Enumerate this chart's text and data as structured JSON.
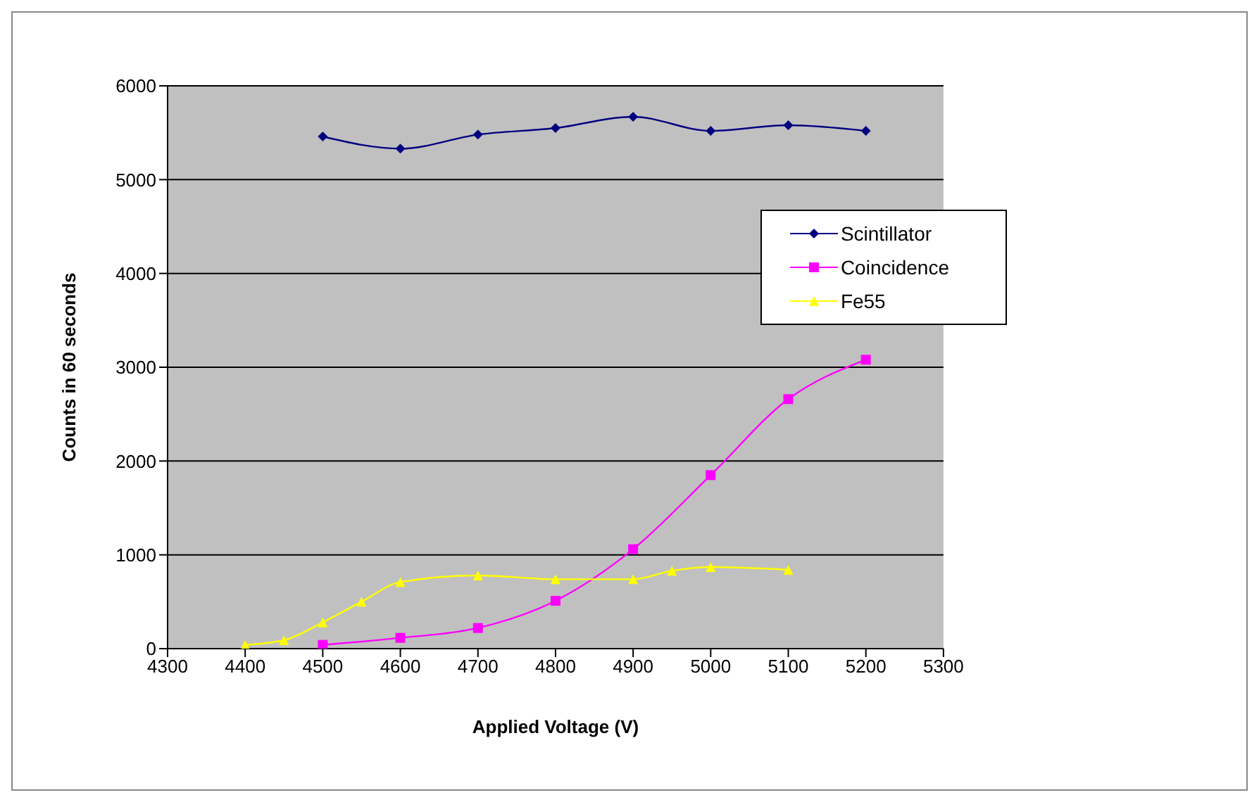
{
  "chart_data": {
    "type": "line",
    "xlabel": "Applied Voltage (V)",
    "ylabel": "Counts in 60 seconds",
    "xlim": [
      4300,
      5300
    ],
    "xticks": [
      4300,
      4400,
      4500,
      4600,
      4700,
      4800,
      4900,
      5000,
      5100,
      5200,
      5300
    ],
    "ylim": [
      0,
      6000
    ],
    "yticks": [
      0,
      1000,
      2000,
      3000,
      4000,
      5000,
      6000
    ],
    "grid": "y",
    "legend": "right",
    "series": [
      {
        "name": "Scintillator",
        "color": "#000080",
        "marker": "diamond",
        "x": [
          4500,
          4600,
          4700,
          4800,
          4900,
          5000,
          5100,
          5200
        ],
        "values": [
          5460,
          5330,
          5480,
          5550,
          5670,
          5520,
          5580,
          5520
        ]
      },
      {
        "name": "Coincidence",
        "color": "#ff00ff",
        "marker": "square",
        "x": [
          4500,
          4600,
          4700,
          4800,
          4900,
          5000,
          5100,
          5200
        ],
        "values": [
          40,
          115,
          220,
          510,
          1060,
          1850,
          2660,
          3080
        ]
      },
      {
        "name": "Fe55",
        "color": "#ffff00",
        "marker": "triangle",
        "x": [
          4400,
          4450,
          4500,
          4550,
          4600,
          4700,
          4800,
          4900,
          4950,
          5000,
          5100
        ],
        "values": [
          40,
          90,
          280,
          500,
          710,
          780,
          740,
          740,
          830,
          870,
          840
        ]
      }
    ]
  }
}
